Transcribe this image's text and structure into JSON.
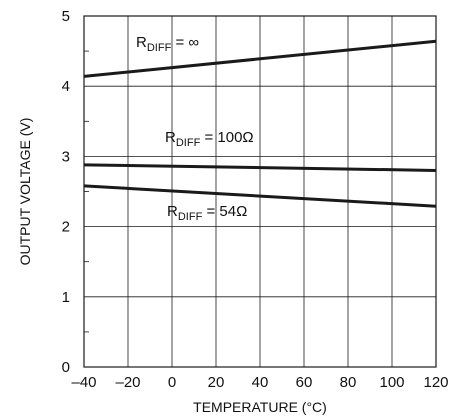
{
  "chart_data": {
    "type": "line",
    "title": "",
    "xlabel": "TEMPERATURE (°C)",
    "ylabel": "OUTPUT VOLTAGE (V)",
    "xlim": [
      -40,
      120
    ],
    "ylim": [
      0,
      5
    ],
    "x_ticks": [
      "–40",
      "–20",
      "0",
      "20",
      "40",
      "60",
      "80",
      "100",
      "120"
    ],
    "y_ticks": [
      "0",
      "1",
      "2",
      "3",
      "4",
      "5"
    ],
    "grid": true,
    "legend": "none",
    "series": [
      {
        "label_main": "R",
        "label_sub": "DIFF",
        "label_rest": " = ∞",
        "x": [
          -40,
          120
        ],
        "y": [
          4.14,
          4.64
        ]
      },
      {
        "label_main": "R",
        "label_sub": "DIFF",
        "label_rest": " = 100Ω",
        "x": [
          -40,
          120
        ],
        "y": [
          2.88,
          2.8
        ]
      },
      {
        "label_main": "R",
        "label_sub": "DIFF",
        "label_rest": " = 54Ω",
        "x": [
          -40,
          120
        ],
        "y": [
          2.58,
          2.29
        ]
      }
    ],
    "colors": {
      "line": "#1a1a1a",
      "grid": "#1a1a1a",
      "text": "#111111"
    }
  }
}
